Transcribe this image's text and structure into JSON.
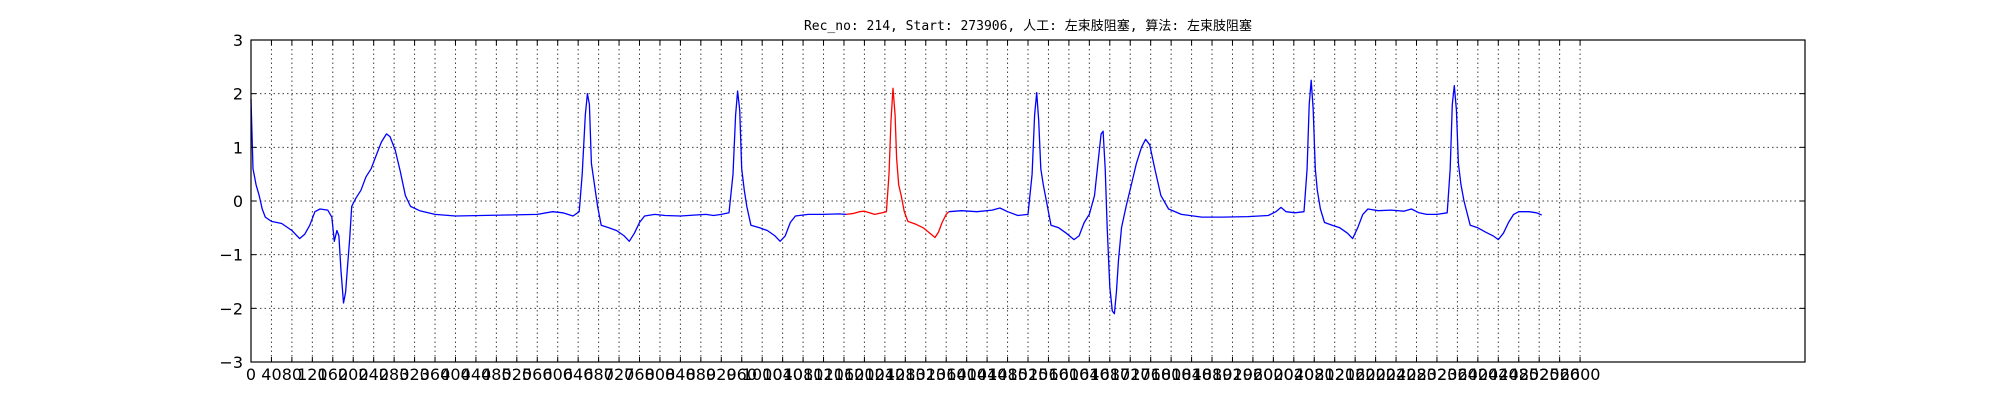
{
  "chart_data": {
    "type": "line",
    "title": "Rec_no: 214, Start: 273906, 人工: 左束肢阻塞, 算法: 左束肢阻塞",
    "xlabel": "",
    "ylabel": "",
    "xlim": [
      0,
      3040
    ],
    "ylim": [
      -3,
      3
    ],
    "grid": true,
    "x_ticks": [
      0,
      40,
      80,
      120,
      160,
      200,
      240,
      280,
      320,
      360,
      400,
      440,
      480,
      520,
      560,
      600,
      640,
      680,
      720,
      760,
      800,
      840,
      880,
      920,
      960,
      1000,
      1040,
      1080,
      1120,
      1160,
      1200,
      1240,
      1280,
      1320,
      1360,
      1400,
      1440,
      1480,
      1520,
      1560,
      1600,
      1640,
      1680,
      1720,
      1760,
      1800,
      1840,
      1880,
      1920,
      1960,
      2000,
      2040,
      2080,
      2120,
      2160,
      2200,
      2240,
      2280,
      2320,
      2360,
      2400,
      2440,
      2480,
      2520,
      2560,
      2600
    ],
    "x_tick_labels": [
      "0",
      "40",
      "80",
      "120",
      "160",
      "200",
      "240",
      "280",
      "320",
      "360",
      "400",
      "440",
      "480",
      "520",
      "560",
      "600",
      "640",
      "680",
      "720",
      "760",
      "800",
      "840",
      "880",
      "920",
      "960",
      "1000",
      "1040",
      "1080",
      "1120",
      "1160",
      "1200",
      "1240",
      "1280",
      "1320",
      "1360",
      "1400",
      "1440",
      "1480",
      "1520",
      "1560",
      "1600",
      "1640",
      "1680",
      "1720",
      "1760",
      "1800",
      "1840",
      "1880",
      "1920",
      "1960",
      "2000",
      "2040",
      "2080",
      "2120",
      "2160",
      "2200",
      "2240",
      "2280",
      "2320",
      "2360",
      "2400",
      "2440",
      "2480",
      "2520",
      "2560",
      "2600"
    ],
    "y_ticks": [
      -3,
      -2,
      -1,
      0,
      1,
      2,
      3
    ],
    "y_tick_labels": [
      "−3",
      "−2",
      "−1",
      "0",
      "1",
      "2",
      "3"
    ],
    "series": [
      {
        "color": "#0000ff",
        "points": [
          [
            0,
            1.9
          ],
          [
            4,
            0.6
          ],
          [
            10,
            0.3
          ],
          [
            16,
            0.1
          ],
          [
            22,
            -0.15
          ],
          [
            28,
            -0.3
          ],
          [
            40,
            -0.38
          ],
          [
            60,
            -0.42
          ],
          [
            80,
            -0.55
          ],
          [
            95,
            -0.7
          ],
          [
            105,
            -0.62
          ],
          [
            115,
            -0.45
          ],
          [
            125,
            -0.2
          ],
          [
            135,
            -0.15
          ],
          [
            150,
            -0.17
          ],
          [
            158,
            -0.3
          ],
          [
            163,
            -0.75
          ],
          [
            168,
            -0.55
          ],
          [
            172,
            -0.65
          ],
          [
            176,
            -1.3
          ],
          [
            181,
            -1.9
          ],
          [
            185,
            -1.7
          ],
          [
            189,
            -1.2
          ],
          [
            193,
            -0.7
          ],
          [
            197,
            -0.1
          ],
          [
            205,
            0.05
          ],
          [
            215,
            0.2
          ],
          [
            225,
            0.45
          ],
          [
            235,
            0.6
          ],
          [
            245,
            0.85
          ],
          [
            255,
            1.1
          ],
          [
            265,
            1.25
          ],
          [
            272,
            1.2
          ],
          [
            282,
            0.95
          ],
          [
            292,
            0.55
          ],
          [
            302,
            0.1
          ],
          [
            312,
            -0.1
          ],
          [
            330,
            -0.18
          ],
          [
            360,
            -0.25
          ],
          [
            400,
            -0.28
          ],
          [
            450,
            -0.27
          ],
          [
            500,
            -0.26
          ],
          [
            560,
            -0.25
          ],
          [
            590,
            -0.2
          ],
          [
            610,
            -0.22
          ],
          [
            630,
            -0.28
          ],
          [
            642,
            -0.2
          ],
          [
            648,
            0.5
          ],
          [
            654,
            1.6
          ],
          [
            658,
            2.0
          ],
          [
            662,
            1.8
          ],
          [
            666,
            0.7
          ],
          [
            672,
            0.3
          ],
          [
            678,
            -0.1
          ],
          [
            685,
            -0.45
          ],
          [
            700,
            -0.5
          ],
          [
            715,
            -0.55
          ],
          [
            730,
            -0.65
          ],
          [
            740,
            -0.75
          ],
          [
            750,
            -0.6
          ],
          [
            760,
            -0.4
          ],
          [
            770,
            -0.28
          ],
          [
            790,
            -0.25
          ],
          [
            810,
            -0.27
          ],
          [
            840,
            -0.28
          ],
          [
            870,
            -0.26
          ],
          [
            890,
            -0.25
          ],
          [
            905,
            -0.27
          ],
          [
            920,
            -0.25
          ],
          [
            935,
            -0.22
          ],
          [
            943,
            0.5
          ],
          [
            948,
            1.6
          ],
          [
            952,
            2.05
          ],
          [
            956,
            1.7
          ],
          [
            960,
            0.6
          ],
          [
            965,
            0.2
          ],
          [
            970,
            -0.1
          ],
          [
            978,
            -0.45
          ],
          [
            995,
            -0.5
          ],
          [
            1010,
            -0.55
          ],
          [
            1025,
            -0.65
          ],
          [
            1035,
            -0.75
          ],
          [
            1045,
            -0.65
          ],
          [
            1055,
            -0.4
          ],
          [
            1065,
            -0.28
          ],
          [
            1090,
            -0.25
          ],
          [
            1120,
            -0.25
          ],
          [
            1150,
            -0.24
          ],
          [
            1165,
            -0.25
          ]
        ]
      },
      {
        "color": "#ff0000",
        "points": [
          [
            1165,
            -0.25
          ],
          [
            1180,
            -0.23
          ],
          [
            1190,
            -0.2
          ],
          [
            1200,
            -0.19
          ],
          [
            1210,
            -0.22
          ],
          [
            1220,
            -0.25
          ],
          [
            1235,
            -0.22
          ],
          [
            1243,
            -0.2
          ],
          [
            1248,
            0.5
          ],
          [
            1252,
            1.5
          ],
          [
            1256,
            2.1
          ],
          [
            1260,
            1.6
          ],
          [
            1263,
            0.8
          ],
          [
            1267,
            0.3
          ],
          [
            1272,
            0.1
          ],
          [
            1278,
            -0.2
          ],
          [
            1285,
            -0.38
          ],
          [
            1300,
            -0.43
          ],
          [
            1315,
            -0.5
          ],
          [
            1328,
            -0.6
          ],
          [
            1338,
            -0.68
          ],
          [
            1345,
            -0.58
          ],
          [
            1352,
            -0.4
          ],
          [
            1360,
            -0.25
          ],
          [
            1365,
            -0.2
          ]
        ]
      },
      {
        "color": "#0000ff",
        "points": [
          [
            1365,
            -0.2
          ],
          [
            1390,
            -0.18
          ],
          [
            1420,
            -0.2
          ],
          [
            1450,
            -0.17
          ],
          [
            1465,
            -0.13
          ],
          [
            1480,
            -0.2
          ],
          [
            1500,
            -0.27
          ],
          [
            1520,
            -0.25
          ],
          [
            1528,
            0.5
          ],
          [
            1533,
            1.6
          ],
          [
            1537,
            2.02
          ],
          [
            1541,
            1.5
          ],
          [
            1545,
            0.6
          ],
          [
            1550,
            0.3
          ],
          [
            1556,
            0.0
          ],
          [
            1565,
            -0.45
          ],
          [
            1580,
            -0.5
          ],
          [
            1595,
            -0.6
          ],
          [
            1610,
            -0.72
          ],
          [
            1620,
            -0.65
          ],
          [
            1630,
            -0.4
          ],
          [
            1640,
            -0.25
          ],
          [
            1650,
            0.1
          ],
          [
            1658,
            0.8
          ],
          [
            1663,
            1.25
          ],
          [
            1667,
            1.3
          ],
          [
            1671,
            0.6
          ],
          [
            1675,
            -0.5
          ],
          [
            1680,
            -1.6
          ],
          [
            1685,
            -2.05
          ],
          [
            1689,
            -2.1
          ],
          [
            1693,
            -1.7
          ],
          [
            1697,
            -1.1
          ],
          [
            1703,
            -0.5
          ],
          [
            1712,
            -0.1
          ],
          [
            1722,
            0.3
          ],
          [
            1732,
            0.7
          ],
          [
            1742,
            1.0
          ],
          [
            1750,
            1.15
          ],
          [
            1758,
            1.05
          ],
          [
            1768,
            0.6
          ],
          [
            1780,
            0.1
          ],
          [
            1795,
            -0.15
          ],
          [
            1820,
            -0.25
          ],
          [
            1860,
            -0.3
          ],
          [
            1900,
            -0.3
          ],
          [
            1950,
            -0.29
          ],
          [
            1990,
            -0.27
          ],
          [
            2005,
            -0.2
          ],
          [
            2015,
            -0.12
          ],
          [
            2025,
            -0.2
          ],
          [
            2042,
            -0.22
          ],
          [
            2060,
            -0.2
          ],
          [
            2066,
            0.6
          ],
          [
            2070,
            1.8
          ],
          [
            2074,
            2.25
          ],
          [
            2078,
            1.7
          ],
          [
            2082,
            0.6
          ],
          [
            2086,
            0.2
          ],
          [
            2092,
            -0.15
          ],
          [
            2100,
            -0.4
          ],
          [
            2115,
            -0.45
          ],
          [
            2130,
            -0.5
          ],
          [
            2145,
            -0.6
          ],
          [
            2155,
            -0.7
          ],
          [
            2165,
            -0.5
          ],
          [
            2175,
            -0.25
          ],
          [
            2185,
            -0.15
          ],
          [
            2205,
            -0.18
          ],
          [
            2230,
            -0.17
          ],
          [
            2255,
            -0.19
          ],
          [
            2270,
            -0.15
          ],
          [
            2285,
            -0.22
          ],
          [
            2300,
            -0.25
          ],
          [
            2320,
            -0.25
          ],
          [
            2340,
            -0.22
          ],
          [
            2346,
            0.6
          ],
          [
            2350,
            1.8
          ],
          [
            2354,
            2.15
          ],
          [
            2358,
            1.7
          ],
          [
            2362,
            0.7
          ],
          [
            2367,
            0.3
          ],
          [
            2373,
            0.0
          ],
          [
            2385,
            -0.45
          ],
          [
            2400,
            -0.5
          ],
          [
            2415,
            -0.58
          ],
          [
            2430,
            -0.65
          ],
          [
            2440,
            -0.72
          ],
          [
            2450,
            -0.6
          ],
          [
            2460,
            -0.4
          ],
          [
            2470,
            -0.25
          ],
          [
            2480,
            -0.2
          ],
          [
            2500,
            -0.2
          ],
          [
            2515,
            -0.22
          ],
          [
            2525,
            -0.26
          ]
        ]
      }
    ]
  }
}
